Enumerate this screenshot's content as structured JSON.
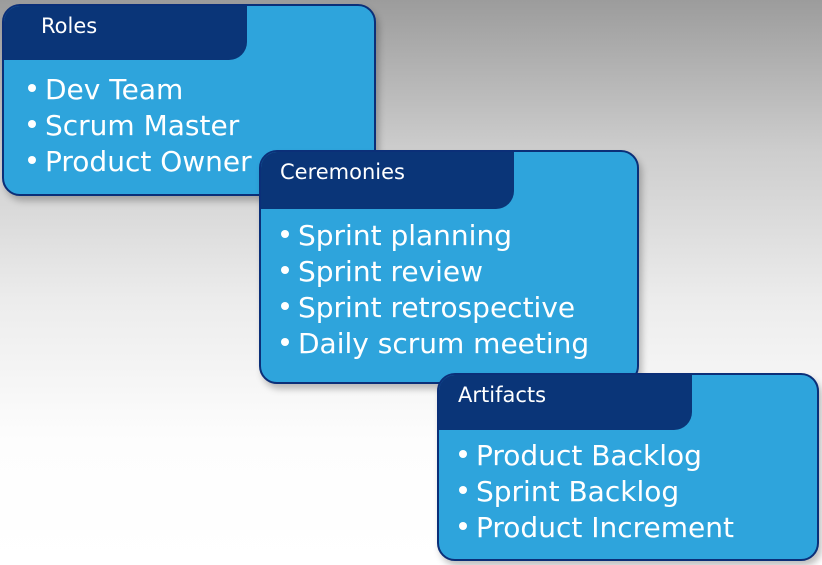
{
  "colors": {
    "card_fill": "#2ea4dc",
    "card_border": "#0b2f78",
    "tab_fill": "#0a3578",
    "text": "#ffffff"
  },
  "cards": [
    {
      "title": "Roles",
      "items": [
        "Dev Team",
        "Scrum Master",
        "Product Owner"
      ]
    },
    {
      "title": "Ceremonies",
      "items": [
        "Sprint planning",
        "Sprint review",
        "Sprint retrospective",
        "Daily scrum meeting"
      ]
    },
    {
      "title": "Artifacts",
      "items": [
        "Product Backlog",
        "Sprint Backlog",
        "Product Increment"
      ]
    }
  ]
}
